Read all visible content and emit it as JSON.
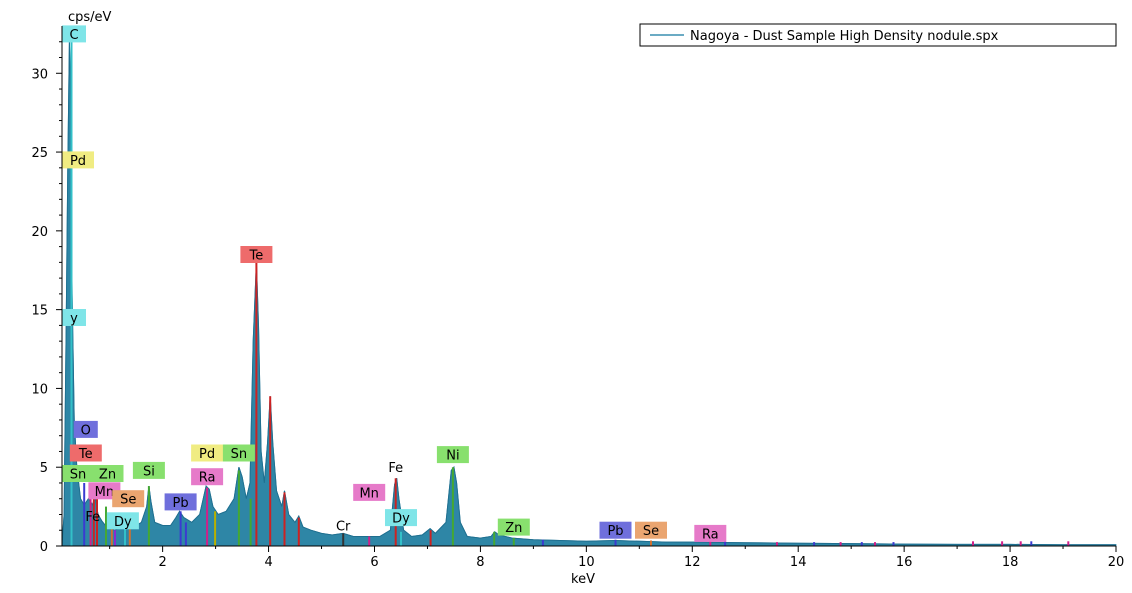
{
  "chart_data": {
    "type": "line",
    "xlabel": "keV",
    "ylabel": "cps/eV",
    "xlim": [
      0.1,
      20
    ],
    "ylim": [
      0,
      33
    ],
    "x_ticks": [
      2,
      4,
      6,
      8,
      10,
      12,
      14,
      16,
      18,
      20
    ],
    "y_ticks": [
      0,
      5,
      10,
      15,
      20,
      25,
      30
    ],
    "x_tick_labels": [
      "2",
      "4",
      "6",
      "8",
      "10",
      "12",
      "14",
      "16",
      "18",
      "20"
    ],
    "y_tick_labels": [
      "0",
      "5",
      "10",
      "15",
      "20",
      "25",
      "30"
    ],
    "grid": false,
    "legend_position": "top-right",
    "series": [
      {
        "name": "Nagoya - Dust Sample High Density nodule.spx",
        "color": "#3a8fb0",
        "fill": "#2e86a6",
        "points": [
          [
            0.1,
            0.0
          ],
          [
            0.14,
            2.0
          ],
          [
            0.18,
            14.0
          ],
          [
            0.21,
            24.0
          ],
          [
            0.24,
            32.0
          ],
          [
            0.26,
            29.0
          ],
          [
            0.29,
            16.0
          ],
          [
            0.33,
            8.0
          ],
          [
            0.38,
            5.0
          ],
          [
            0.45,
            3.0
          ],
          [
            0.52,
            2.6
          ],
          [
            0.6,
            3.0
          ],
          [
            0.68,
            2.6
          ],
          [
            0.72,
            3.2
          ],
          [
            0.78,
            2.0
          ],
          [
            0.85,
            1.6
          ],
          [
            0.92,
            1.3
          ],
          [
            1.0,
            1.1
          ],
          [
            1.1,
            1.0
          ],
          [
            1.2,
            1.2
          ],
          [
            1.3,
            1.5
          ],
          [
            1.4,
            1.3
          ],
          [
            1.5,
            1.3
          ],
          [
            1.6,
            1.5
          ],
          [
            1.7,
            2.5
          ],
          [
            1.74,
            3.8
          ],
          [
            1.78,
            2.8
          ],
          [
            1.85,
            1.5
          ],
          [
            2.0,
            1.3
          ],
          [
            2.15,
            1.3
          ],
          [
            2.25,
            1.8
          ],
          [
            2.32,
            2.2
          ],
          [
            2.4,
            1.8
          ],
          [
            2.55,
            1.5
          ],
          [
            2.7,
            2.0
          ],
          [
            2.82,
            3.8
          ],
          [
            2.88,
            3.6
          ],
          [
            2.95,
            2.5
          ],
          [
            3.05,
            2.0
          ],
          [
            3.2,
            2.2
          ],
          [
            3.35,
            3.0
          ],
          [
            3.44,
            5.0
          ],
          [
            3.5,
            4.4
          ],
          [
            3.58,
            3.0
          ],
          [
            3.65,
            4.0
          ],
          [
            3.71,
            13.0
          ],
          [
            3.77,
            18.0
          ],
          [
            3.81,
            14.0
          ],
          [
            3.86,
            6.0
          ],
          [
            3.92,
            4.0
          ],
          [
            3.98,
            6.5
          ],
          [
            4.03,
            9.5
          ],
          [
            4.08,
            6.5
          ],
          [
            4.15,
            3.5
          ],
          [
            4.25,
            2.5
          ],
          [
            4.3,
            3.5
          ],
          [
            4.38,
            2.0
          ],
          [
            4.5,
            1.5
          ],
          [
            4.57,
            1.9
          ],
          [
            4.65,
            1.2
          ],
          [
            4.8,
            1.0
          ],
          [
            5.0,
            0.8
          ],
          [
            5.2,
            0.7
          ],
          [
            5.41,
            0.8
          ],
          [
            5.6,
            0.6
          ],
          [
            5.9,
            0.6
          ],
          [
            6.1,
            0.6
          ],
          [
            6.3,
            1.0
          ],
          [
            6.38,
            3.9
          ],
          [
            6.42,
            4.3
          ],
          [
            6.46,
            3.0
          ],
          [
            6.55,
            1.0
          ],
          [
            6.7,
            0.6
          ],
          [
            6.9,
            0.7
          ],
          [
            7.05,
            1.1
          ],
          [
            7.15,
            0.8
          ],
          [
            7.35,
            1.5
          ],
          [
            7.45,
            4.8
          ],
          [
            7.5,
            5.0
          ],
          [
            7.55,
            4.0
          ],
          [
            7.62,
            1.5
          ],
          [
            7.75,
            0.6
          ],
          [
            8.0,
            0.5
          ],
          [
            8.2,
            0.6
          ],
          [
            8.27,
            0.9
          ],
          [
            8.35,
            0.7
          ],
          [
            8.6,
            0.5
          ],
          [
            9.0,
            0.4
          ],
          [
            9.5,
            0.35
          ],
          [
            10.0,
            0.3
          ],
          [
            10.55,
            0.35
          ],
          [
            11.0,
            0.3
          ],
          [
            11.5,
            0.25
          ],
          [
            12.0,
            0.25
          ],
          [
            13.0,
            0.2
          ],
          [
            14.0,
            0.18
          ],
          [
            15.0,
            0.15
          ],
          [
            16.0,
            0.12
          ],
          [
            17.0,
            0.1
          ],
          [
            18.0,
            0.1
          ],
          [
            19.0,
            0.08
          ],
          [
            20.0,
            0.08
          ]
        ]
      }
    ],
    "element_labels": [
      {
        "text": "C",
        "keV": 0.28,
        "cps": 32.5,
        "bg": "#7fe5e8"
      },
      {
        "text": "Pd",
        "keV": 0.28,
        "cps": 24.5,
        "bg": "#f0ec82"
      },
      {
        "text": "y",
        "keV": 0.26,
        "cps": 14.5,
        "bg": "#7fe5e8"
      },
      {
        "text": "O",
        "keV": 0.55,
        "cps": 7.4,
        "bg": "#6f6fdc"
      },
      {
        "text": "Te",
        "keV": 0.55,
        "cps": 5.9,
        "bg": "#ee6b6b"
      },
      {
        "text": "Sn",
        "keV": 0.38,
        "cps": 4.6,
        "bg": "#88e06e"
      },
      {
        "text": "Zn",
        "keV": 0.96,
        "cps": 4.6,
        "bg": "#88e06e"
      },
      {
        "text": "Mn",
        "keV": 0.9,
        "cps": 3.5,
        "bg": "#e67ac9"
      },
      {
        "text": "Fe",
        "keV": 0.68,
        "cps": 1.9,
        "bg": ""
      },
      {
        "text": "Se",
        "keV": 1.35,
        "cps": 3.0,
        "bg": "#eaa570"
      },
      {
        "text": "Dy",
        "keV": 1.25,
        "cps": 1.6,
        "bg": "#7fe5e8"
      },
      {
        "text": "Si",
        "keV": 1.74,
        "cps": 4.8,
        "bg": "#88e06e"
      },
      {
        "text": "Pb",
        "keV": 2.34,
        "cps": 2.8,
        "bg": "#6f6fdc"
      },
      {
        "text": "Pd",
        "keV": 2.84,
        "cps": 5.9,
        "bg": "#f0ec82"
      },
      {
        "text": "Ra",
        "keV": 2.84,
        "cps": 4.4,
        "bg": "#e67ac9"
      },
      {
        "text": "Sn",
        "keV": 3.44,
        "cps": 5.9,
        "bg": "#88e06e"
      },
      {
        "text": "Te",
        "keV": 3.77,
        "cps": 18.5,
        "bg": "#ee6b6b"
      },
      {
        "text": "Cr",
        "keV": 5.41,
        "cps": 1.3,
        "bg": ""
      },
      {
        "text": "Mn",
        "keV": 5.9,
        "cps": 3.4,
        "bg": "#e67ac9"
      },
      {
        "text": "Fe",
        "keV": 6.4,
        "cps": 5.0,
        "bg": ""
      },
      {
        "text": "Dy",
        "keV": 6.5,
        "cps": 1.8,
        "bg": "#7fe5e8"
      },
      {
        "text": "Ni",
        "keV": 7.48,
        "cps": 5.8,
        "bg": "#88e06e"
      },
      {
        "text": "Zn",
        "keV": 8.63,
        "cps": 1.2,
        "bg": "#88e06e"
      },
      {
        "text": "Pb",
        "keV": 10.55,
        "cps": 1.0,
        "bg": "#6f6fdc"
      },
      {
        "text": "Se",
        "keV": 11.22,
        "cps": 1.0,
        "bg": "#eaa570"
      },
      {
        "text": "Ra",
        "keV": 12.34,
        "cps": 0.8,
        "bg": "#e67ac9"
      }
    ],
    "marker_lines": [
      {
        "keV": 0.28,
        "cps": 32.0,
        "color": "#33c0c8"
      },
      {
        "keV": 0.52,
        "cps": 4.0,
        "color": "#3b3bd0"
      },
      {
        "keV": 0.7,
        "cps": 3.0,
        "color": "#cc2222"
      },
      {
        "keV": 0.76,
        "cps": 3.0,
        "color": "#cc2222"
      },
      {
        "keV": 0.64,
        "cps": 3.2,
        "color": "#d0208a"
      },
      {
        "keV": 0.93,
        "cps": 2.5,
        "color": "#44a833"
      },
      {
        "keV": 1.04,
        "cps": 1.2,
        "color": "#d07030"
      },
      {
        "keV": 1.1,
        "cps": 1.0,
        "color": "#8a2ad0"
      },
      {
        "keV": 1.29,
        "cps": 1.1,
        "color": "#33c0c8"
      },
      {
        "keV": 1.38,
        "cps": 1.5,
        "color": "#d07030"
      },
      {
        "keV": 1.74,
        "cps": 3.8,
        "color": "#44a833"
      },
      {
        "keV": 2.34,
        "cps": 2.2,
        "color": "#3b3bd0"
      },
      {
        "keV": 2.44,
        "cps": 1.5,
        "color": "#3b3bd0"
      },
      {
        "keV": 2.84,
        "cps": 3.7,
        "color": "#d0208a"
      },
      {
        "keV": 2.99,
        "cps": 2.2,
        "color": "#b8b000"
      },
      {
        "keV": 3.44,
        "cps": 4.8,
        "color": "#44a833"
      },
      {
        "keV": 3.66,
        "cps": 3.0,
        "color": "#44a833"
      },
      {
        "keV": 3.77,
        "cps": 18.0,
        "color": "#cc2222"
      },
      {
        "keV": 4.03,
        "cps": 9.5,
        "color": "#cc2222"
      },
      {
        "keV": 4.3,
        "cps": 3.4,
        "color": "#cc2222"
      },
      {
        "keV": 4.57,
        "cps": 1.8,
        "color": "#cc2222"
      },
      {
        "keV": 5.41,
        "cps": 0.8,
        "color": "#333333"
      },
      {
        "keV": 5.9,
        "cps": 0.6,
        "color": "#d0208a"
      },
      {
        "keV": 6.4,
        "cps": 4.3,
        "color": "#cc2222"
      },
      {
        "keV": 6.5,
        "cps": 0.9,
        "color": "#33c0c8"
      },
      {
        "keV": 7.06,
        "cps": 1.0,
        "color": "#cc2222"
      },
      {
        "keV": 7.48,
        "cps": 5.0,
        "color": "#44a833"
      },
      {
        "keV": 8.26,
        "cps": 0.9,
        "color": "#44a833"
      },
      {
        "keV": 8.63,
        "cps": 0.5,
        "color": "#44a833"
      },
      {
        "keV": 9.18,
        "cps": 0.4,
        "color": "#3b3bd0"
      },
      {
        "keV": 10.55,
        "cps": 0.4,
        "color": "#3b3bd0"
      },
      {
        "keV": 11.22,
        "cps": 0.35,
        "color": "#d07030"
      },
      {
        "keV": 12.34,
        "cps": 0.3,
        "color": "#d0208a"
      },
      {
        "keV": 12.62,
        "cps": 0.3,
        "color": "#3b3bd0"
      },
      {
        "keV": 13.6,
        "cps": 0.25,
        "color": "#d0208a"
      },
      {
        "keV": 14.3,
        "cps": 0.25,
        "color": "#3b3bd0"
      },
      {
        "keV": 14.8,
        "cps": 0.25,
        "color": "#d0208a"
      },
      {
        "keV": 15.2,
        "cps": 0.25,
        "color": "#3b3bd0"
      },
      {
        "keV": 15.45,
        "cps": 0.25,
        "color": "#d0208a"
      },
      {
        "keV": 15.8,
        "cps": 0.25,
        "color": "#3b3bd0"
      },
      {
        "keV": 17.3,
        "cps": 0.3,
        "color": "#d0208a"
      },
      {
        "keV": 17.85,
        "cps": 0.3,
        "color": "#d0208a"
      },
      {
        "keV": 18.2,
        "cps": 0.3,
        "color": "#d0208a"
      },
      {
        "keV": 18.4,
        "cps": 0.3,
        "color": "#3b3bd0"
      },
      {
        "keV": 19.1,
        "cps": 0.3,
        "color": "#d0208a"
      }
    ]
  }
}
